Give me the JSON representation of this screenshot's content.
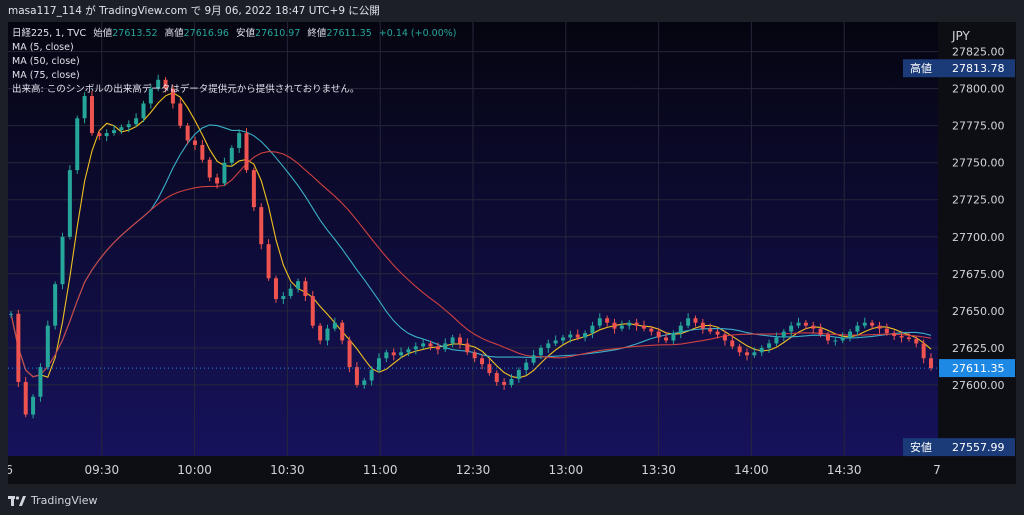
{
  "header": {
    "text": "masa117_114 が TradingView.com で 9月 06, 2022 18:47 UTC+9 に公開"
  },
  "footer": {
    "logo_text": "TradingView"
  },
  "legend": {
    "ohlc_prefix": "日経225, 1, TVC",
    "open_label": "始値",
    "open_value": "27613.52",
    "high_label": "高値",
    "high_value": "27616.96",
    "low_label": "安値",
    "low_value": "27610.97",
    "close_label": "終値",
    "close_value": "27611.35",
    "change": "+0.14 (+0.00%)",
    "ma_lines": [
      "MA (5, close)",
      "MA (50, close)",
      "MA (75, close)"
    ],
    "volume_note": "出来高: このシンボルの出来高データはデータ提供元から提供されておりません。"
  },
  "colors": {
    "background_top": "#050510",
    "background_bottom": "#16125c",
    "up": "#26a69a",
    "down": "#ef5350",
    "ma5": "#f0c020",
    "ma50": "#3ab0c8",
    "ma75": "#d04040",
    "price_tag": "#1e88e5",
    "hl_tag": "#1a3a78"
  },
  "chart_data": {
    "type": "candlestick",
    "currency": "JPY",
    "x_tick_labels": [
      "6",
      "09:30",
      "10:00",
      "10:30",
      "11:00",
      "12:30",
      "13:00",
      "13:30",
      "14:00",
      "14:30",
      "7"
    ],
    "y_ticks": [
      27600,
      27625,
      27650,
      27675,
      27700,
      27725,
      27750,
      27775,
      27800,
      27825
    ],
    "y_tick_labels": [
      "27600.00",
      "27625.00",
      "27650.00",
      "27675.00",
      "27700.00",
      "27725.00",
      "27750.00",
      "27775.00",
      "27800.00",
      "27825.00"
    ],
    "ylim": [
      27552,
      27845
    ],
    "last_price": {
      "value": 27611.35,
      "label": "27611.35"
    },
    "high_marker": {
      "label": "高値",
      "value": 27813.78,
      "value_label": "27813.78"
    },
    "low_marker": {
      "label": "安値",
      "value": 27557.99,
      "value_label": "27557.99"
    },
    "close_path": [
      27648,
      27602,
      27580,
      27592,
      27612,
      27640,
      27668,
      27700,
      27745,
      27780,
      27795,
      27770,
      27768,
      27770,
      27772,
      27774,
      27776,
      27780,
      27790,
      27800,
      27806,
      27800,
      27790,
      27775,
      27765,
      27762,
      27752,
      27740,
      27736,
      27750,
      27760,
      27770,
      27745,
      27720,
      27695,
      27672,
      27658,
      27660,
      27665,
      27670,
      27660,
      27640,
      27630,
      27638,
      27642,
      27630,
      27612,
      27600,
      27603,
      27610,
      27618,
      27622,
      27620,
      27622,
      27624,
      27626,
      27628,
      27626,
      27624,
      27628,
      27632,
      27628,
      27622,
      27618,
      27614,
      27608,
      27602,
      27600,
      27604,
      27610,
      27615,
      27620,
      27625,
      27628,
      27630,
      27632,
      27634,
      27632,
      27635,
      27640,
      27645,
      27642,
      27638,
      27640,
      27642,
      27640,
      27638,
      27636,
      27632,
      27630,
      27635,
      27640,
      27645,
      27642,
      27638,
      27636,
      27634,
      27630,
      27626,
      27622,
      27620,
      27622,
      27625,
      27628,
      27632,
      27636,
      27640,
      27642,
      27640,
      27638,
      27634,
      27630,
      27630,
      27632,
      27636,
      27640,
      27642,
      27640,
      27638,
      27635,
      27633,
      27632,
      27631,
      27628,
      27618,
      27611.35
    ]
  }
}
